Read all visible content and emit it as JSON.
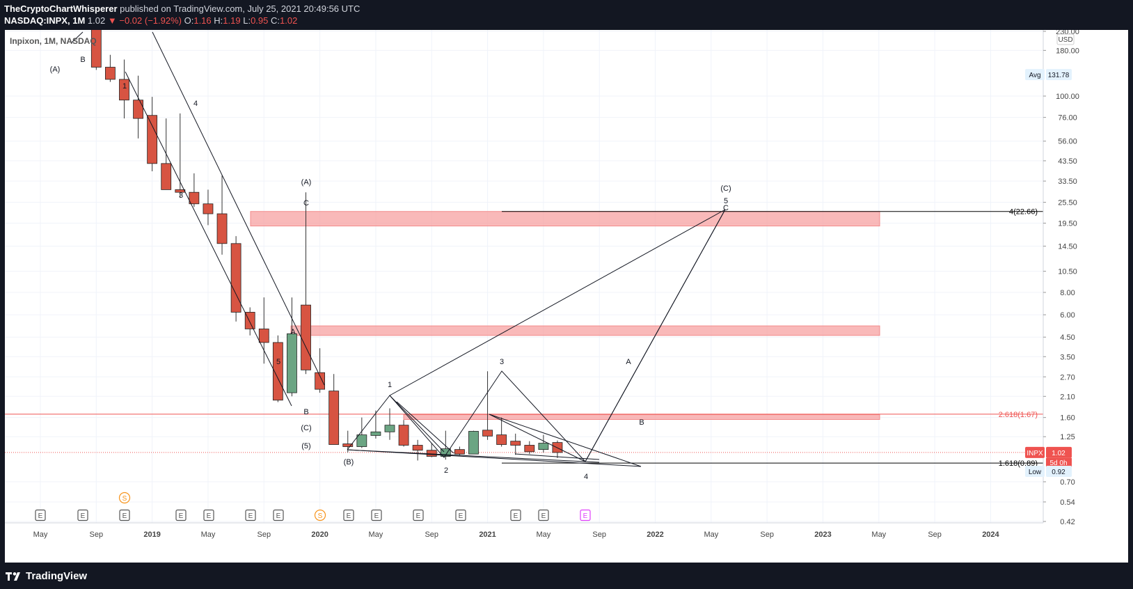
{
  "header": {
    "author": "TheCryptoChartWhisperer",
    "published": "published on TradingView.com, July 25, 2021 20:49:56 UTC",
    "symbol": "NASDAQ:INPX, 1M",
    "last": "1.02",
    "change": "−0.02 (−1.92%)",
    "open_label": "O:",
    "open": "1.16",
    "high_label": "H:",
    "high": "1.19",
    "low_label": "L:",
    "low": "0.95",
    "close_label": "C:",
    "close": "1.02"
  },
  "legend": "Inpixon, 1M, NASDAQ",
  "footer": {
    "brand": "TradingView"
  },
  "chart_data": {
    "type": "candlestick",
    "scale": "log",
    "currency": "USD",
    "ylim": [
      0.42,
      230.0
    ],
    "price_ticks": [
      "230.00",
      "180.00",
      "100.00",
      "76.00",
      "56.00",
      "43.50",
      "33.50",
      "25.50",
      "19.50",
      "14.50",
      "10.50",
      "8.00",
      "6.00",
      "4.50",
      "3.50",
      "2.70",
      "2.10",
      "1.60",
      "1.25",
      "0.70",
      "0.54",
      "0.42"
    ],
    "time_ticks": [
      "May",
      "Sep",
      "2019",
      "May",
      "Sep",
      "2020",
      "May",
      "Sep",
      "2021",
      "May",
      "Sep",
      "2022",
      "May",
      "Sep",
      "2023",
      "May",
      "Sep",
      "2024"
    ],
    "candles": [
      {
        "date": "2018-09",
        "o": 275,
        "h": 300,
        "l": 140,
        "c": 145
      },
      {
        "date": "2018-10",
        "o": 145,
        "h": 170,
        "l": 120,
        "c": 124
      },
      {
        "date": "2018-11",
        "o": 124,
        "h": 160,
        "l": 75,
        "c": 95
      },
      {
        "date": "2018-12",
        "o": 95,
        "h": 130,
        "l": 58,
        "c": 75
      },
      {
        "date": "2019-01",
        "o": 78,
        "h": 99,
        "l": 38,
        "c": 42
      },
      {
        "date": "2019-02",
        "o": 42,
        "h": 75,
        "l": 30,
        "c": 30
      },
      {
        "date": "2019-03",
        "o": 30,
        "h": 80,
        "l": 27,
        "c": 29
      },
      {
        "date": "2019-04",
        "o": 29,
        "h": 37,
        "l": 24,
        "c": 25
      },
      {
        "date": "2019-05",
        "o": 25,
        "h": 30,
        "l": 19,
        "c": 22
      },
      {
        "date": "2019-06",
        "o": 22,
        "h": 36,
        "l": 13,
        "c": 15
      },
      {
        "date": "2019-07",
        "o": 15,
        "h": 16.5,
        "l": 5.5,
        "c": 6.2
      },
      {
        "date": "2019-08",
        "o": 6.2,
        "h": 6.6,
        "l": 4.6,
        "c": 5.0
      },
      {
        "date": "2019-09",
        "o": 5.0,
        "h": 7.5,
        "l": 3.2,
        "c": 4.2
      },
      {
        "date": "2019-10",
        "o": 4.2,
        "h": 4.6,
        "l": 1.95,
        "c": 2.0
      },
      {
        "date": "2019-11",
        "o": 2.2,
        "h": 7.5,
        "l": 2.1,
        "c": 4.7
      },
      {
        "date": "2019-12",
        "o": 6.8,
        "h": 29,
        "l": 2.8,
        "c": 2.95
      },
      {
        "date": "2020-01",
        "o": 2.85,
        "h": 3.9,
        "l": 2.2,
        "c": 2.3
      },
      {
        "date": "2020-02",
        "o": 2.25,
        "h": 2.8,
        "l": 1.13,
        "c": 1.13
      },
      {
        "date": "2020-03",
        "o": 1.14,
        "h": 1.35,
        "l": 1.02,
        "c": 1.1
      },
      {
        "date": "2020-04",
        "o": 1.1,
        "h": 1.6,
        "l": 1.08,
        "c": 1.28
      },
      {
        "date": "2020-05",
        "o": 1.27,
        "h": 1.75,
        "l": 1.22,
        "c": 1.33
      },
      {
        "date": "2020-06",
        "o": 1.33,
        "h": 1.8,
        "l": 1.2,
        "c": 1.45
      },
      {
        "date": "2020-07",
        "o": 1.45,
        "h": 1.55,
        "l": 1.1,
        "c": 1.12
      },
      {
        "date": "2020-08",
        "o": 1.12,
        "h": 1.2,
        "l": 0.92,
        "c": 1.05
      },
      {
        "date": "2020-09",
        "o": 1.05,
        "h": 1.15,
        "l": 0.96,
        "c": 0.97
      },
      {
        "date": "2020-10",
        "o": 0.97,
        "h": 1.35,
        "l": 0.93,
        "c": 1.07
      },
      {
        "date": "2020-11",
        "o": 1.06,
        "h": 1.1,
        "l": 0.98,
        "c": 1.0
      },
      {
        "date": "2020-12",
        "o": 1.0,
        "h": 1.35,
        "l": 1.0,
        "c": 1.34
      },
      {
        "date": "2021-01",
        "o": 1.36,
        "h": 2.9,
        "l": 1.2,
        "c": 1.26
      },
      {
        "date": "2021-02",
        "o": 1.28,
        "h": 1.6,
        "l": 1.1,
        "c": 1.13
      },
      {
        "date": "2021-03",
        "o": 1.18,
        "h": 1.3,
        "l": 0.99,
        "c": 1.12
      },
      {
        "date": "2021-04",
        "o": 1.12,
        "h": 1.18,
        "l": 1.0,
        "c": 1.03
      },
      {
        "date": "2021-05",
        "o": 1.06,
        "h": 1.28,
        "l": 1.02,
        "c": 1.15
      },
      {
        "date": "2021-06",
        "o": 1.16,
        "h": 1.19,
        "l": 0.95,
        "c": 1.02
      }
    ],
    "zones": [
      {
        "price_top": 22.66,
        "price_bottom": 18.8
      },
      {
        "price_top": 5.2,
        "price_bottom": 4.6
      },
      {
        "price_top": 1.66,
        "price_bottom": 1.56
      }
    ],
    "levels": [
      {
        "label": "4(22.66)",
        "price": 22.66,
        "color": "#000000"
      },
      {
        "label": "2.618(1.67)",
        "price": 1.67,
        "color": "#ef5350"
      },
      {
        "label": "1.618(0.89)",
        "price": 0.89,
        "color": "#000000"
      }
    ],
    "price_tags": [
      {
        "label": "Avg",
        "value": "131.78"
      },
      {
        "label": "INPX",
        "value": "1.02",
        "sub": "5d 0h"
      },
      {
        "label": "Low",
        "value": "0.92"
      }
    ],
    "wave_labels": [
      "(A)",
      "B",
      "1",
      "4",
      "3",
      "5",
      "A",
      "B",
      "(C)",
      "(5)",
      "(A)",
      "C",
      "(B)",
      "1",
      "2",
      "3",
      "4",
      "A",
      "B",
      "(C)",
      "5",
      "C"
    ],
    "event_markers": [
      "E",
      "E",
      "E",
      "E",
      "E",
      "E",
      "E",
      "S",
      "E",
      "E",
      "E",
      "E",
      "E",
      "E",
      "E",
      "S"
    ]
  }
}
